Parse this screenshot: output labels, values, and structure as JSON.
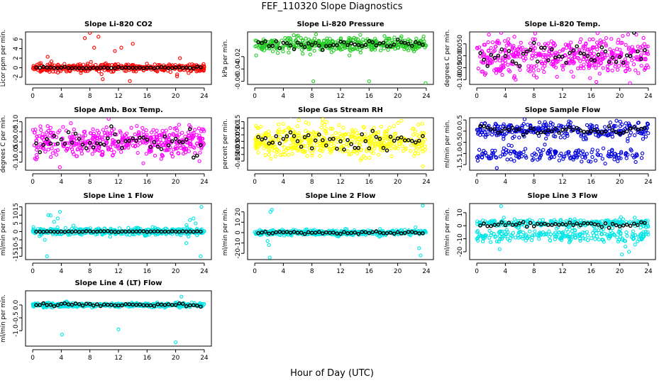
{
  "figure": {
    "title": "FEF_110320  Slope Diagnostics",
    "xlabel": "Hour of Day (UTC)"
  },
  "chart_data": [
    {
      "type": "scatter",
      "title": "Slope Li-820 CO2",
      "ylabel": "Licor ppm per min.",
      "xlim": [
        0,
        24
      ],
      "ylim": [
        -3.5,
        7.5
      ],
      "xticks": [
        0,
        4,
        8,
        12,
        16,
        20,
        24
      ],
      "yticks": [
        -2,
        0,
        2,
        4,
        6
      ],
      "ytick_labels": [
        "-2",
        "0",
        "2",
        "4",
        "6"
      ],
      "color": "#ff0000",
      "center": 0,
      "spread": 0.4,
      "n": 380,
      "outliers": [
        [
          7.3,
          6.2
        ],
        [
          8.0,
          7.3
        ],
        [
          9.2,
          6.5
        ],
        [
          8.6,
          4.2
        ],
        [
          11.5,
          3.5
        ],
        [
          12.4,
          4.2
        ],
        [
          14.0,
          5.0
        ],
        [
          13.6,
          -2.8
        ],
        [
          9.8,
          -2.4
        ],
        [
          2.1,
          2.3
        ],
        [
          20.2,
          -1.8
        ],
        [
          20.6,
          2.0
        ]
      ],
      "means": {
        "center": 0,
        "spread": 0.08
      }
    },
    {
      "type": "scatter",
      "title": "Slope Li-820 Pressure",
      "ylabel": "kPa per min.",
      "xlim": [
        0,
        24
      ],
      "ylim": [
        -0.065,
        0.02
      ],
      "xticks": [
        0,
        4,
        8,
        12,
        16,
        20,
        24
      ],
      "yticks": [
        -0.06,
        -0.04,
        -0.02
      ],
      "ytick_labels": [
        "-0.06",
        "-0.04",
        "-0.02"
      ],
      "color": "#22cc22",
      "center": 0,
      "spread": 0.006,
      "n": 420,
      "outliers": [
        [
          8.2,
          -0.06
        ],
        [
          16.0,
          -0.06
        ],
        [
          23.9,
          -0.063
        ],
        [
          0.2,
          -0.018
        ]
      ],
      "means": {
        "center": 0,
        "spread": 0.003
      }
    },
    {
      "type": "scatter",
      "title": "Slope Li-820 Temp.",
      "ylabel": "degrees C per min.",
      "xlim": [
        0,
        24
      ],
      "ylim": [
        -0.12,
        0.1
      ],
      "xticks": [
        0,
        4,
        8,
        12,
        16,
        20,
        24
      ],
      "yticks": [
        -0.1,
        -0.05,
        0.0,
        0.05
      ],
      "ytick_labels": [
        "-0.100",
        "-0.050",
        "0.000",
        "0.050"
      ],
      "color": "#ff00ff",
      "center": 0.0,
      "spread": 0.04,
      "n": 460,
      "outliers": [],
      "means": {
        "center": 0.0,
        "spread": 0.03
      }
    },
    {
      "type": "scatter",
      "title": "Slope Amb. Box Temp.",
      "ylabel": "degrees C per min.",
      "xlim": [
        0,
        24
      ],
      "ylim": [
        -0.14,
        0.12
      ],
      "xticks": [
        0,
        4,
        8,
        12,
        16,
        20,
        24
      ],
      "yticks": [
        -0.1,
        -0.05,
        0.0,
        0.05,
        0.1
      ],
      "ytick_labels": [
        "-0.10",
        "-0.05",
        "0.00",
        "0.05",
        "0.10"
      ],
      "color": "#ff00ff",
      "center": 0.0,
      "spread": 0.035,
      "n": 460,
      "outliers": [
        [
          3.8,
          -0.125
        ]
      ],
      "means": {
        "center": 0.0,
        "spread": 0.035
      }
    },
    {
      "type": "scatter",
      "title": "Slope Gas Stream RH",
      "ylabel": "percent per min.",
      "xlim": [
        0,
        24
      ],
      "ylim": [
        -0.22,
        0.18
      ],
      "xticks": [
        0,
        4,
        8,
        12,
        16,
        20,
        24
      ],
      "yticks": [
        -0.15,
        -0.1,
        -0.05,
        0.0,
        0.05,
        0.1,
        0.15
      ],
      "ytick_labels": [
        "-0.15",
        "-0.10",
        "-0.05",
        "0.00",
        "0.05",
        "0.10",
        "0.15"
      ],
      "color": "#ffff00",
      "center": 0.0,
      "spread": 0.06,
      "n": 480,
      "outliers": [
        [
          23.5,
          -0.19
        ]
      ],
      "means": {
        "center": 0.0,
        "spread": 0.04
      }
    },
    {
      "type": "scatter",
      "title": "Slope Sample Flow",
      "ylabel": "ml/min per min.",
      "xlim": [
        0,
        24
      ],
      "ylim": [
        -1.75,
        0.6
      ],
      "xticks": [
        0,
        4,
        8,
        12,
        16,
        20,
        24
      ],
      "yticks": [
        -1.5,
        -1.0,
        -0.5,
        0.0,
        0.5
      ],
      "ytick_labels": [
        "-1.5",
        "-1.0",
        "-0.5",
        "0.0",
        "0.5"
      ],
      "color": "#0000dd",
      "center": 0.05,
      "spread": 0.18,
      "n": 300,
      "band2": {
        "center": -1.05,
        "spread": 0.15,
        "n": 170
      },
      "outliers": [
        [
          2.8,
          -1.65
        ]
      ],
      "means": {
        "center": 0.05,
        "spread": 0.1
      }
    },
    {
      "type": "scatter",
      "title": "Slope Line 1 Flow",
      "ylabel": "ml/min per min.",
      "xlim": [
        0,
        24
      ],
      "ylim": [
        -17,
        17
      ],
      "xticks": [
        0,
        4,
        8,
        12,
        16,
        20,
        24
      ],
      "yticks": [
        -15,
        -10,
        -5,
        0,
        5,
        10,
        15
      ],
      "ytick_labels": [
        "-15",
        "-10",
        "-5",
        "0",
        "5",
        "10",
        "15"
      ],
      "color": "#00e5e5",
      "center": 0,
      "spread": 1.0,
      "n": 420,
      "outliers": [
        [
          2.2,
          10
        ],
        [
          2.5,
          9.8
        ],
        [
          3.5,
          8
        ],
        [
          3.8,
          12
        ],
        [
          3.0,
          6
        ],
        [
          1.7,
          -5
        ],
        [
          2.0,
          -15
        ],
        [
          21.5,
          -7
        ],
        [
          22.0,
          7
        ],
        [
          22.5,
          8
        ],
        [
          23.5,
          -15
        ],
        [
          23.6,
          15
        ],
        [
          21.8,
          -3
        ],
        [
          22.8,
          5
        ]
      ],
      "means": {
        "center": 0,
        "spread": 0.1
      }
    },
    {
      "type": "scatter",
      "title": "Slope Line 2 Flow",
      "ylabel": "ml/min per min.",
      "xlim": [
        0,
        24
      ],
      "ylim": [
        -26,
        28
      ],
      "xticks": [
        0,
        4,
        8,
        12,
        16,
        20,
        24
      ],
      "yticks": [
        -20,
        -10,
        0,
        10,
        20
      ],
      "ytick_labels": [
        "-20",
        "-10",
        "0",
        "10",
        "20"
      ],
      "color": "#00e5e5",
      "center": 0,
      "spread": 1.2,
      "n": 420,
      "outliers": [
        [
          2.2,
          20
        ],
        [
          2.4,
          22
        ],
        [
          2.0,
          -12
        ],
        [
          2.1,
          -24
        ],
        [
          1.8,
          -8
        ],
        [
          23.5,
          26
        ],
        [
          23.2,
          -22
        ],
        [
          23.0,
          -15
        ],
        [
          22.5,
          5
        ]
      ],
      "means": {
        "center": 0,
        "spread": 0.6
      }
    },
    {
      "type": "scatter",
      "title": "Slope Line 3 Flow",
      "ylabel": "ml/min per min.",
      "xlim": [
        0,
        24
      ],
      "ylim": [
        -26,
        17
      ],
      "xticks": [
        0,
        4,
        8,
        12,
        16,
        20,
        24
      ],
      "yticks": [
        -20,
        -10,
        0,
        10
      ],
      "ytick_labels": [
        "-20",
        "-10",
        "0",
        "10"
      ],
      "color": "#00e5e5",
      "center": 2,
      "spread": 1.5,
      "n": 260,
      "band2": {
        "center": -8,
        "spread": 2.5,
        "n": 220
      },
      "outliers": [
        [
          3.4,
          15
        ],
        [
          3.2,
          -18
        ],
        [
          2.8,
          -12
        ],
        [
          20.3,
          -22
        ],
        [
          20.8,
          -16
        ],
        [
          21.3,
          -20
        ],
        [
          22.5,
          -12
        ],
        [
          23.0,
          -9
        ]
      ],
      "means": {
        "center": 1,
        "spread": 1.2
      }
    },
    {
      "type": "scatter",
      "title": "Slope Line 4 (LT) Flow",
      "ylabel": "ml/min per min.",
      "xlim": [
        0,
        24
      ],
      "ylim": [
        -1.6,
        0.55
      ],
      "xticks": [
        0,
        4,
        8,
        12,
        16,
        20,
        24
      ],
      "yticks": [
        -1.0,
        -0.5,
        0.0
      ],
      "ytick_labels": [
        "-1.0",
        "-0.5",
        "0.0"
      ],
      "color": "#00e5e5",
      "center": 0,
      "spread": 0.04,
      "n": 420,
      "outliers": [
        [
          4.1,
          -1.15
        ],
        [
          12.0,
          -0.95
        ],
        [
          20.0,
          -1.45
        ],
        [
          20.8,
          0.32
        ],
        [
          1.5,
          -0.1
        ],
        [
          2.5,
          -0.08
        ]
      ],
      "means": {
        "center": 0,
        "spread": 0.03
      }
    }
  ]
}
